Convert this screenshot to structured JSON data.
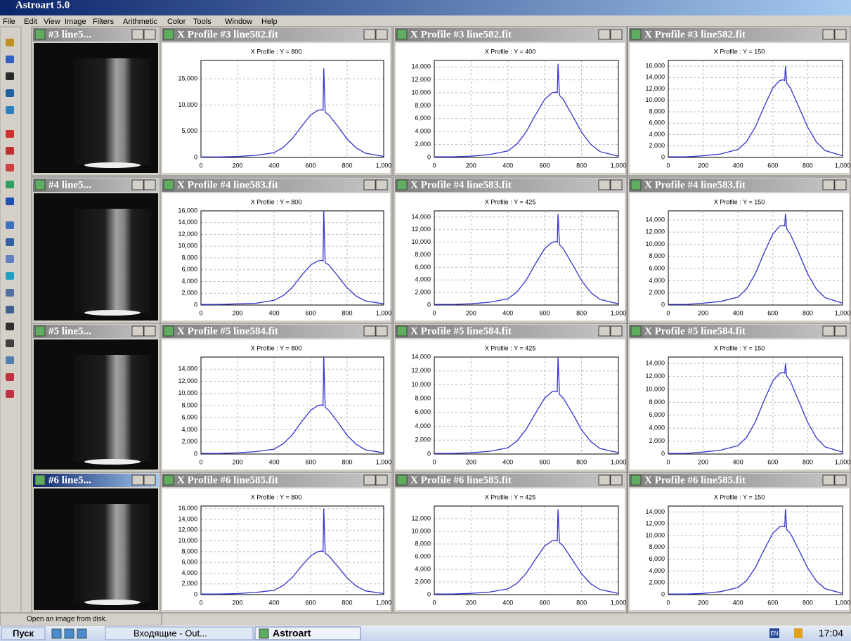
{
  "app_title": "Astroart 5.0",
  "menu": [
    "File",
    "Edit",
    "View",
    "Image",
    "Filters",
    "Arithmetic",
    "Color",
    "Tools",
    "Window",
    "Help"
  ],
  "image_windows": [
    {
      "title": "#3 line5..."
    },
    {
      "title": "#4 line5..."
    },
    {
      "title": "#5 line5..."
    },
    {
      "title": "#6 line5..."
    }
  ],
  "status": "Open an image from disk.",
  "taskbar": {
    "start": "Пуск",
    "items": [
      "Входящие - Out...",
      "Astroart"
    ],
    "lang": "EN",
    "clock": "17:04"
  },
  "chart_data": [
    {
      "type": "line",
      "title": "X Profile #3 line582.fit",
      "subtitle": "X Profile :  Y = 800",
      "color": "#3333cc",
      "x": [
        0,
        100,
        200,
        300,
        400,
        450,
        500,
        550,
        600,
        640,
        660,
        668,
        672,
        680,
        700,
        750,
        800,
        850,
        900,
        1000
      ],
      "values": [
        90,
        90,
        180,
        400,
        900,
        1900,
        3600,
        5900,
        8100,
        9000,
        9100,
        9000,
        17000,
        8600,
        8100,
        5900,
        3500,
        1800,
        800,
        200
      ],
      "xlim": [
        0,
        1000
      ],
      "ylim": [
        0,
        18500
      ],
      "xticks": [
        0,
        200,
        400,
        600,
        800,
        {
          "value": 1000,
          "label": "1,000"
        }
      ],
      "yticks": [
        0,
        {
          "value": 5000,
          "label": "5,000"
        },
        {
          "value": 10000,
          "label": "10,000"
        },
        {
          "value": 15000,
          "label": "15,000"
        }
      ]
    },
    {
      "type": "line",
      "title": "X Profile #3 line582.fit",
      "subtitle": "X Profile :  Y = 400",
      "color": "#3333cc",
      "x": [
        0,
        100,
        200,
        300,
        400,
        450,
        500,
        550,
        600,
        640,
        660,
        668,
        672,
        680,
        700,
        750,
        800,
        850,
        900,
        1000
      ],
      "values": [
        100,
        100,
        200,
        450,
        1000,
        2100,
        4000,
        6600,
        9000,
        10000,
        10100,
        10000,
        14500,
        9600,
        9000,
        6500,
        3900,
        2000,
        900,
        200
      ],
      "xlim": [
        0,
        1000
      ],
      "ylim": [
        0,
        15000
      ],
      "xticks": [
        0,
        200,
        400,
        600,
        800,
        {
          "value": 1000,
          "label": "1,000"
        }
      ],
      "yticks": [
        0,
        {
          "value": 2000,
          "label": "2,000"
        },
        {
          "value": 4000,
          "label": "4,000"
        },
        {
          "value": 6000,
          "label": "6,000"
        },
        {
          "value": 8000,
          "label": "8,000"
        },
        {
          "value": 10000,
          "label": "10,000"
        },
        {
          "value": 12000,
          "label": "12,000"
        },
        {
          "value": 14000,
          "label": "14,000"
        }
      ]
    },
    {
      "type": "line",
      "title": "X Profile #3 line582.fit",
      "subtitle": "X Profile :  Y = 150",
      "color": "#3333cc",
      "x": [
        0,
        100,
        200,
        300,
        400,
        450,
        500,
        550,
        600,
        640,
        660,
        668,
        672,
        680,
        700,
        750,
        800,
        850,
        900,
        1000
      ],
      "values": [
        100,
        100,
        300,
        600,
        1400,
        2800,
        5400,
        8900,
        12200,
        13500,
        13600,
        13500,
        16000,
        13000,
        12200,
        8800,
        5300,
        2700,
        1200,
        300
      ],
      "xlim": [
        0,
        1000
      ],
      "ylim": [
        0,
        17000
      ],
      "xticks": [
        0,
        200,
        400,
        600,
        800,
        {
          "value": 1000,
          "label": "1,000"
        }
      ],
      "yticks": [
        0,
        {
          "value": 2000,
          "label": "2,000"
        },
        {
          "value": 4000,
          "label": "4,000"
        },
        {
          "value": 6000,
          "label": "6,000"
        },
        {
          "value": 8000,
          "label": "8,000"
        },
        {
          "value": 10000,
          "label": "10,000"
        },
        {
          "value": 12000,
          "label": "12,000"
        },
        {
          "value": 14000,
          "label": "14,000"
        },
        {
          "value": 16000,
          "label": "16,000"
        }
      ]
    },
    {
      "type": "line",
      "title": "X Profile #4 line583.fit",
      "subtitle": "X Profile :  Y = 800",
      "color": "#3333cc",
      "x": [
        0,
        100,
        200,
        300,
        400,
        450,
        500,
        550,
        600,
        640,
        660,
        668,
        672,
        680,
        700,
        750,
        800,
        850,
        900,
        1000
      ],
      "values": [
        100,
        100,
        200,
        300,
        800,
        1600,
        3000,
        5000,
        6800,
        7500,
        7600,
        7500,
        16000,
        7200,
        6800,
        4900,
        2900,
        1500,
        700,
        200
      ],
      "xlim": [
        0,
        1000
      ],
      "ylim": [
        0,
        16000
      ],
      "xticks": [
        0,
        200,
        400,
        600,
        800,
        {
          "value": 1000,
          "label": "1,000"
        }
      ],
      "yticks": [
        0,
        {
          "value": 2000,
          "label": "2,000"
        },
        {
          "value": 4000,
          "label": "4,000"
        },
        {
          "value": 6000,
          "label": "6,000"
        },
        {
          "value": 8000,
          "label": "8,000"
        },
        {
          "value": 10000,
          "label": "10,000"
        },
        {
          "value": 12000,
          "label": "12,000"
        },
        {
          "value": 14000,
          "label": "14,000"
        },
        {
          "value": 16000,
          "label": "16,000"
        }
      ]
    },
    {
      "type": "line",
      "title": "X Profile #4 line583.fit",
      "subtitle": "X Profile :  Y = 425",
      "color": "#3333cc",
      "x": [
        0,
        100,
        200,
        300,
        400,
        450,
        500,
        550,
        600,
        640,
        660,
        668,
        672,
        680,
        700,
        750,
        800,
        850,
        900,
        1000
      ],
      "values": [
        100,
        100,
        200,
        450,
        1000,
        2100,
        4000,
        6600,
        9000,
        10000,
        10100,
        10000,
        14500,
        9600,
        9000,
        6500,
        3900,
        2000,
        900,
        200
      ],
      "xlim": [
        0,
        1000
      ],
      "ylim": [
        0,
        15000
      ],
      "xticks": [
        0,
        200,
        400,
        600,
        800,
        {
          "value": 1000,
          "label": "1,000"
        }
      ],
      "yticks": [
        0,
        {
          "value": 2000,
          "label": "2,000"
        },
        {
          "value": 4000,
          "label": "4,000"
        },
        {
          "value": 6000,
          "label": "6,000"
        },
        {
          "value": 8000,
          "label": "8,000"
        },
        {
          "value": 10000,
          "label": "10,000"
        },
        {
          "value": 12000,
          "label": "12,000"
        },
        {
          "value": 14000,
          "label": "14,000"
        }
      ]
    },
    {
      "type": "line",
      "title": "X Profile #4 line583.fit",
      "subtitle": "X Profile :  Y = 150",
      "color": "#3333cc",
      "x": [
        0,
        100,
        200,
        300,
        400,
        450,
        500,
        550,
        600,
        640,
        660,
        668,
        672,
        680,
        700,
        750,
        800,
        850,
        900,
        1000
      ],
      "values": [
        100,
        100,
        300,
        600,
        1300,
        2700,
        5200,
        8600,
        11700,
        13000,
        13100,
        13000,
        15000,
        12500,
        11700,
        8500,
        5100,
        2600,
        1200,
        300
      ],
      "xlim": [
        0,
        1000
      ],
      "ylim": [
        0,
        15500
      ],
      "xticks": [
        0,
        200,
        400,
        600,
        800,
        {
          "value": 1000,
          "label": "1,000"
        }
      ],
      "yticks": [
        0,
        {
          "value": 2000,
          "label": "2,000"
        },
        {
          "value": 4000,
          "label": "4,000"
        },
        {
          "value": 6000,
          "label": "6,000"
        },
        {
          "value": 8000,
          "label": "8,000"
        },
        {
          "value": 10000,
          "label": "10,000"
        },
        {
          "value": 12000,
          "label": "12,000"
        },
        {
          "value": 14000,
          "label": "14,000"
        }
      ]
    },
    {
      "type": "line",
      "title": "X Profile #5 line584.fit",
      "subtitle": "X Profile :  Y = 800",
      "color": "#3333cc",
      "x": [
        0,
        100,
        200,
        300,
        400,
        450,
        500,
        550,
        600,
        640,
        660,
        668,
        672,
        680,
        700,
        750,
        800,
        850,
        900,
        1000
      ],
      "values": [
        100,
        100,
        200,
        400,
        800,
        1700,
        3200,
        5300,
        7200,
        8000,
        8100,
        8000,
        16000,
        7700,
        7200,
        5200,
        3100,
        1600,
        700,
        200
      ],
      "xlim": [
        0,
        1000
      ],
      "ylim": [
        0,
        16000
      ],
      "xticks": [
        0,
        200,
        400,
        600,
        800,
        {
          "value": 1000,
          "label": "1,000"
        }
      ],
      "yticks": [
        0,
        {
          "value": 2000,
          "label": "2,000"
        },
        {
          "value": 4000,
          "label": "4,000"
        },
        {
          "value": 6000,
          "label": "6,000"
        },
        {
          "value": 8000,
          "label": "8,000"
        },
        {
          "value": 10000,
          "label": "10,000"
        },
        {
          "value": 12000,
          "label": "12,000"
        },
        {
          "value": 14000,
          "label": "14,000"
        }
      ]
    },
    {
      "type": "line",
      "title": "X Profile #5 line584.fit",
      "subtitle": "X Profile :  Y = 425",
      "color": "#3333cc",
      "x": [
        0,
        100,
        200,
        300,
        400,
        450,
        500,
        550,
        600,
        640,
        660,
        668,
        672,
        680,
        700,
        750,
        800,
        850,
        900,
        1000
      ],
      "values": [
        90,
        90,
        180,
        400,
        900,
        1900,
        3600,
        5900,
        8100,
        9000,
        9100,
        9000,
        14000,
        8600,
        8100,
        5900,
        3500,
        1800,
        800,
        200
      ],
      "xlim": [
        0,
        1000
      ],
      "ylim": [
        0,
        14000
      ],
      "xticks": [
        0,
        200,
        400,
        600,
        800,
        {
          "value": 1000,
          "label": "1,000"
        }
      ],
      "yticks": [
        0,
        {
          "value": 2000,
          "label": "2,000"
        },
        {
          "value": 4000,
          "label": "4,000"
        },
        {
          "value": 6000,
          "label": "6,000"
        },
        {
          "value": 8000,
          "label": "8,000"
        },
        {
          "value": 10000,
          "label": "10,000"
        },
        {
          "value": 12000,
          "label": "12,000"
        },
        {
          "value": 14000,
          "label": "14,000"
        }
      ]
    },
    {
      "type": "line",
      "title": "X Profile #5 line584.fit",
      "subtitle": "X Profile :  Y = 150",
      "color": "#3333cc",
      "x": [
        0,
        100,
        200,
        300,
        400,
        450,
        500,
        550,
        600,
        640,
        660,
        668,
        672,
        680,
        700,
        750,
        800,
        850,
        900,
        1000
      ],
      "values": [
        100,
        100,
        300,
        600,
        1300,
        2600,
        5000,
        8300,
        11300,
        12500,
        12600,
        12500,
        14000,
        12000,
        11300,
        8100,
        4900,
        2500,
        1100,
        300
      ],
      "xlim": [
        0,
        1000
      ],
      "ylim": [
        0,
        15000
      ],
      "xticks": [
        0,
        200,
        400,
        600,
        800,
        {
          "value": 1000,
          "label": "1,000"
        }
      ],
      "yticks": [
        0,
        {
          "value": 2000,
          "label": "2,000"
        },
        {
          "value": 4000,
          "label": "4,000"
        },
        {
          "value": 6000,
          "label": "6,000"
        },
        {
          "value": 8000,
          "label": "8,000"
        },
        {
          "value": 10000,
          "label": "10,000"
        },
        {
          "value": 12000,
          "label": "12,000"
        },
        {
          "value": 14000,
          "label": "14,000"
        }
      ]
    },
    {
      "type": "line",
      "title": "X Profile #6 line585.fit",
      "subtitle": "X Profile :  Y = 800",
      "color": "#3333cc",
      "x": [
        0,
        100,
        200,
        300,
        400,
        450,
        500,
        550,
        600,
        640,
        660,
        668,
        672,
        680,
        700,
        750,
        800,
        850,
        900,
        1000
      ],
      "values": [
        100,
        100,
        200,
        400,
        800,
        1700,
        3200,
        5300,
        7200,
        8000,
        8100,
        8000,
        16000,
        7700,
        7200,
        5200,
        3100,
        1600,
        700,
        200
      ],
      "xlim": [
        0,
        1000
      ],
      "ylim": [
        0,
        16500
      ],
      "xticks": [
        0,
        200,
        400,
        600,
        800,
        {
          "value": 1000,
          "label": "1,000"
        }
      ],
      "yticks": [
        0,
        {
          "value": 2000,
          "label": "2,000"
        },
        {
          "value": 4000,
          "label": "4,000"
        },
        {
          "value": 6000,
          "label": "6,000"
        },
        {
          "value": 8000,
          "label": "8,000"
        },
        {
          "value": 10000,
          "label": "10,000"
        },
        {
          "value": 12000,
          "label": "12,000"
        },
        {
          "value": 14000,
          "label": "14,000"
        },
        {
          "value": 16000,
          "label": "16,000"
        }
      ]
    },
    {
      "type": "line",
      "title": "X Profile #6 line585.fit",
      "subtitle": "X Profile :  Y = 425",
      "color": "#3333cc",
      "x": [
        0,
        100,
        200,
        300,
        400,
        450,
        500,
        550,
        600,
        640,
        660,
        668,
        672,
        680,
        700,
        750,
        800,
        850,
        900,
        1000
      ],
      "values": [
        100,
        100,
        200,
        400,
        900,
        1800,
        3400,
        5600,
        7700,
        8500,
        8600,
        8500,
        13500,
        8200,
        7700,
        5500,
        3300,
        1700,
        800,
        200
      ],
      "xlim": [
        0,
        1000
      ],
      "ylim": [
        0,
        14000
      ],
      "xticks": [
        0,
        200,
        400,
        600,
        800,
        {
          "value": 1000,
          "label": "1,000"
        }
      ],
      "yticks": [
        0,
        {
          "value": 2000,
          "label": "2,000"
        },
        {
          "value": 4000,
          "label": "4,000"
        },
        {
          "value": 6000,
          "label": "6,000"
        },
        {
          "value": 8000,
          "label": "8,000"
        },
        {
          "value": 10000,
          "label": "10,000"
        },
        {
          "value": 12000,
          "label": "12,000"
        }
      ]
    },
    {
      "type": "line",
      "title": "X Profile #6 line585.fit",
      "subtitle": "X Profile :  Y = 150",
      "color": "#3333cc",
      "x": [
        0,
        100,
        200,
        300,
        400,
        450,
        500,
        550,
        600,
        640,
        660,
        668,
        672,
        680,
        700,
        750,
        800,
        850,
        900,
        1000
      ],
      "values": [
        100,
        100,
        200,
        500,
        1200,
        2400,
        4600,
        7600,
        10400,
        11500,
        11600,
        11500,
        14500,
        11000,
        10400,
        7500,
        4500,
        2300,
        1000,
        200
      ],
      "xlim": [
        0,
        1000
      ],
      "ylim": [
        0,
        15000
      ],
      "xticks": [
        0,
        200,
        400,
        600,
        800,
        {
          "value": 1000,
          "label": "1,000"
        }
      ],
      "yticks": [
        0,
        {
          "value": 2000,
          "label": "2,000"
        },
        {
          "value": 4000,
          "label": "4,000"
        },
        {
          "value": 6000,
          "label": "6,000"
        },
        {
          "value": 8000,
          "label": "8,000"
        },
        {
          "value": 10000,
          "label": "10,000"
        },
        {
          "value": 12000,
          "label": "12,000"
        },
        {
          "value": 14000,
          "label": "14,000"
        }
      ]
    }
  ]
}
